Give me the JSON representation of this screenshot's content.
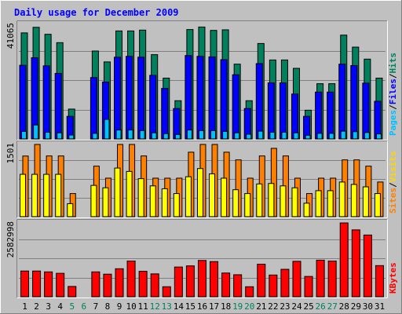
{
  "chart_data": {
    "type": "bar",
    "title": "Daily usage for December 2009",
    "days": [
      "1",
      "2",
      "3",
      "4",
      "5",
      "6",
      "7",
      "8",
      "9",
      "10",
      "11",
      "12",
      "13",
      "14",
      "15",
      "16",
      "17",
      "18",
      "19",
      "20",
      "21",
      "22",
      "23",
      "24",
      "25",
      "26",
      "27",
      "28",
      "29",
      "30",
      "31"
    ],
    "weekend_days": [
      "5",
      "6",
      "12",
      "13",
      "19",
      "20",
      "26",
      "27"
    ],
    "panels": [
      {
        "name": "hits-files-pages",
        "ymax_label": "41065",
        "ymax": 41065,
        "side_label": [
          "Pages",
          "/",
          "Files",
          "/",
          "Hits"
        ],
        "side_label_colors": [
          "#00c0ff",
          "#000000",
          "#0000ff",
          "#000000",
          "#00805c"
        ],
        "series": [
          {
            "name": "Hits",
            "color": "#00805c",
            "values": [
              38000,
              40000,
              37500,
              34500,
              10700,
              0,
              31500,
              27600,
              38700,
              38700,
              39000,
              30200,
              21800,
              13700,
              39200,
              40100,
              38900,
              39100,
              26800,
              13700,
              34200,
              28300,
              28300,
              25300,
              10300,
              19800,
              19800,
              37200,
              32900,
              28600,
              21800
            ]
          },
          {
            "name": "Files",
            "color": "#0000ff",
            "values": [
              26400,
              29100,
              26200,
              23500,
              8100,
              0,
              22000,
              20400,
              29300,
              29600,
              29300,
              22800,
              18100,
              10900,
              29900,
              29600,
              29400,
              28400,
              23000,
              10900,
              27000,
              20100,
              20100,
              16100,
              8100,
              16800,
              16800,
              26800,
              26300,
              20000,
              13500
            ]
          },
          {
            "name": "Pages",
            "color": "#00c0ff",
            "values": [
              2700,
              5000,
              2400,
              2200,
              1400,
              0,
              2000,
              7000,
              3200,
              3200,
              3000,
              2200,
              1900,
              1600,
              3200,
              3000,
              3000,
              2700,
              2200,
              1700,
              2800,
              2400,
              2400,
              2200,
              1300,
              2000,
              2000,
              2800,
              2600,
              2300,
              1800
            ]
          }
        ]
      },
      {
        "name": "visits-sites",
        "ymax_label": "1501",
        "ymax": 1501,
        "side_label": [
          "Sites",
          "/",
          "Visits"
        ],
        "side_label_colors": [
          "#ff8000",
          "#000000",
          "#ffd700"
        ],
        "series": [
          {
            "name": "Visits",
            "color": "#ff8000",
            "values": [
              1260,
              1501,
              1262,
              1262,
              480,
              0,
              1050,
              800,
              1501,
              1501,
              1262,
              800,
              800,
              800,
              1340,
              1501,
              1501,
              1340,
              1180,
              800,
              1262,
              1420,
              1262,
              800,
              480,
              800,
              800,
              1180,
              1180,
              1050,
              720
            ]
          },
          {
            "name": "Sites",
            "color": "#ffff00",
            "values": [
              880,
              880,
              880,
              880,
              270,
              0,
              650,
              600,
              1010,
              940,
              790,
              640,
              580,
              480,
              830,
              1000,
              890,
              800,
              560,
              480,
              680,
              690,
              640,
              600,
              280,
              540,
              540,
              720,
              670,
              620,
              480
            ]
          }
        ]
      },
      {
        "name": "kbytes",
        "ymax_label": "2582998",
        "ymax": 2582998,
        "side_label": [
          "KBytes"
        ],
        "side_label_colors": [
          "#ff0000"
        ],
        "series": [
          {
            "name": "KBytes",
            "color": "#ff0000",
            "values": [
              900000,
              900000,
              870000,
              820000,
              360000,
              0,
              870000,
              790000,
              980000,
              1250000,
              890000,
              800000,
              350000,
              1040000,
              1080000,
              1270000,
              1230000,
              830000,
              770000,
              350000,
              1140000,
              760000,
              960000,
              1240000,
              710000,
              1280000,
              1250000,
              2582998,
              2340000,
              2160000,
              1090000
            ]
          }
        ]
      }
    ]
  },
  "colors": {
    "background": "#c0c0c0",
    "title": "#0000ff",
    "weekday_label": "#000000",
    "weekend_label": "#00805c"
  }
}
